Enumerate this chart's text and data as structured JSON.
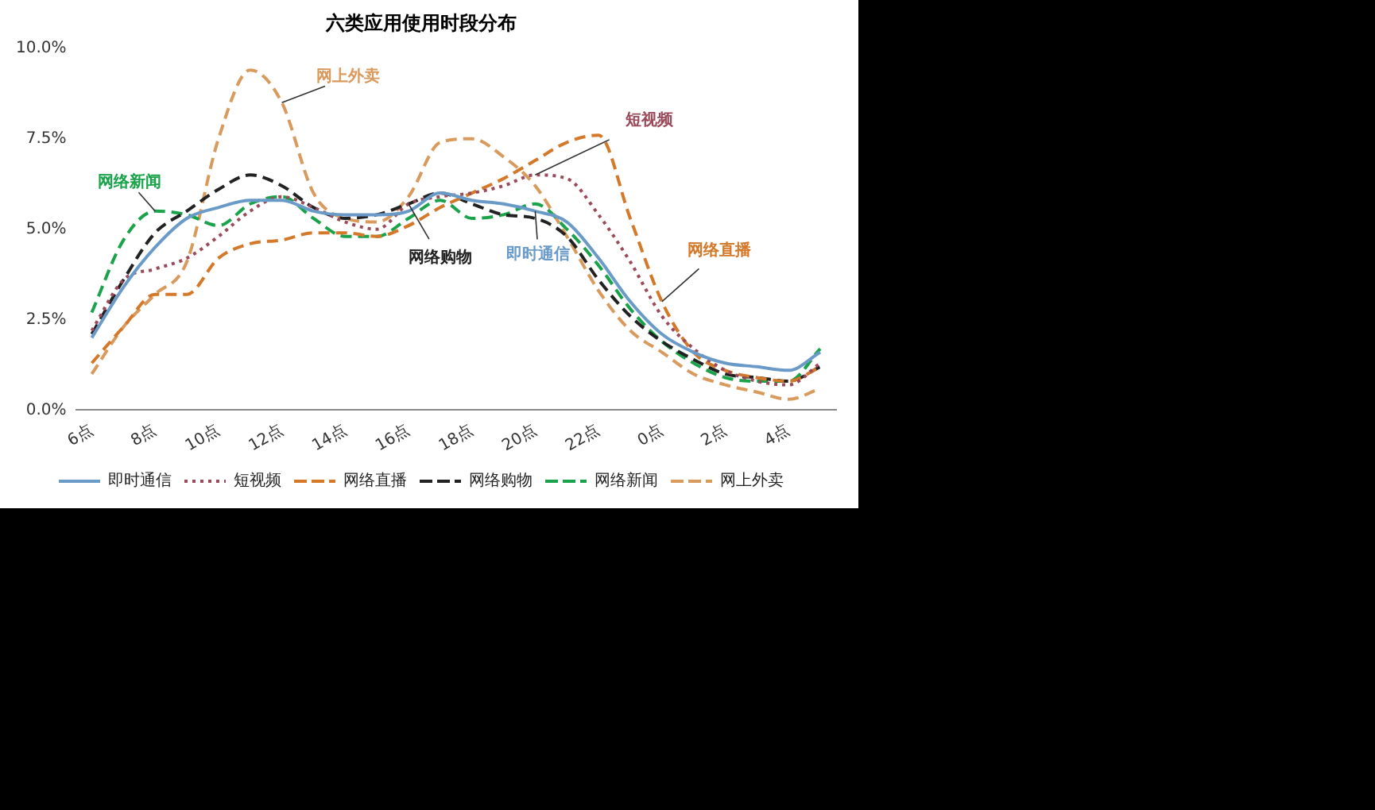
{
  "chart_data": {
    "type": "line",
    "title": "六类应用使用时段分布",
    "categories": [
      "6点",
      null,
      "8点",
      null,
      "10点",
      null,
      "12点",
      null,
      "14点",
      null,
      "16点",
      null,
      "18点",
      null,
      "20点",
      null,
      "22点",
      null,
      "0点",
      null,
      "2点",
      null,
      "4点",
      null
    ],
    "series": [
      {
        "name": "即时通信",
        "color": "#6a9bc8",
        "line_style": "solid",
        "values": [
          2.0,
          3.4,
          4.5,
          5.3,
          5.6,
          5.8,
          5.8,
          5.5,
          5.4,
          5.4,
          5.5,
          6.0,
          5.8,
          5.7,
          5.5,
          5.2,
          4.2,
          3.0,
          2.1,
          1.6,
          1.3,
          1.2,
          1.1,
          1.6
        ]
      },
      {
        "name": "短视频",
        "color": "#9b4a5a",
        "line_style": "dotted",
        "values": [
          2.2,
          3.6,
          3.9,
          4.2,
          4.8,
          5.5,
          5.9,
          5.6,
          5.2,
          5.0,
          5.7,
          5.9,
          6.0,
          6.2,
          6.5,
          6.4,
          5.4,
          4.1,
          2.6,
          1.7,
          1.1,
          0.8,
          0.7,
          1.3
        ]
      },
      {
        "name": "网络直播",
        "color": "#d4782a",
        "line_style": "dashed",
        "values": [
          1.3,
          2.3,
          3.2,
          3.2,
          4.2,
          4.6,
          4.7,
          4.9,
          4.9,
          4.8,
          5.1,
          5.6,
          6.0,
          6.4,
          6.9,
          7.4,
          7.6,
          5.3,
          3.0,
          1.6,
          1.1,
          0.9,
          0.8,
          1.2
        ]
      },
      {
        "name": "网络购物",
        "color": "#222222",
        "line_style": "dashed",
        "values": [
          2.1,
          3.6,
          4.9,
          5.5,
          6.1,
          6.5,
          6.2,
          5.6,
          5.3,
          5.4,
          5.7,
          6.0,
          5.7,
          5.4,
          5.3,
          4.8,
          3.6,
          2.6,
          1.9,
          1.4,
          1.0,
          0.9,
          0.8,
          1.2
        ]
      },
      {
        "name": "网络新闻",
        "color": "#1aa34a",
        "line_style": "dashed",
        "values": [
          2.7,
          4.7,
          5.5,
          5.4,
          5.1,
          5.7,
          5.9,
          5.3,
          4.8,
          4.8,
          5.3,
          5.8,
          5.3,
          5.4,
          5.7,
          5.0,
          4.0,
          2.8,
          1.9,
          1.3,
          0.9,
          0.8,
          0.8,
          1.7
        ]
      },
      {
        "name": "网上外卖",
        "color": "#d99a5e",
        "line_style": "dashed",
        "values": [
          1.0,
          2.3,
          3.2,
          4.1,
          7.5,
          9.4,
          8.5,
          6.0,
          5.3,
          5.2,
          5.9,
          7.4,
          7.5,
          7.0,
          6.2,
          4.8,
          3.3,
          2.2,
          1.6,
          1.0,
          0.7,
          0.5,
          0.3,
          0.6
        ]
      }
    ],
    "ylim": [
      0,
      10
    ],
    "yticks": [
      {
        "value": 0,
        "label": "0.0%"
      },
      {
        "value": 2.5,
        "label": "2.5%"
      },
      {
        "value": 5,
        "label": "5.0%"
      },
      {
        "value": 7.5,
        "label": "7.5%"
      },
      {
        "value": 10,
        "label": "10.0%"
      }
    ],
    "grid": false,
    "legend": "bottom",
    "marker": "none",
    "annotations": [
      {
        "text": "网上外卖",
        "x": "12点",
        "y": 8.5
      },
      {
        "text": "短视频",
        "x": "20点",
        "y": 6.5
      },
      {
        "text": "网络直播",
        "x": "0点",
        "y": 3.0
      },
      {
        "text": "网络购物",
        "x": "16点",
        "y": 5.7
      },
      {
        "text": "即时通信",
        "x": "20点",
        "y": 5.5
      },
      {
        "text": "网络新闻",
        "x": "8点",
        "y": 5.5
      }
    ]
  }
}
